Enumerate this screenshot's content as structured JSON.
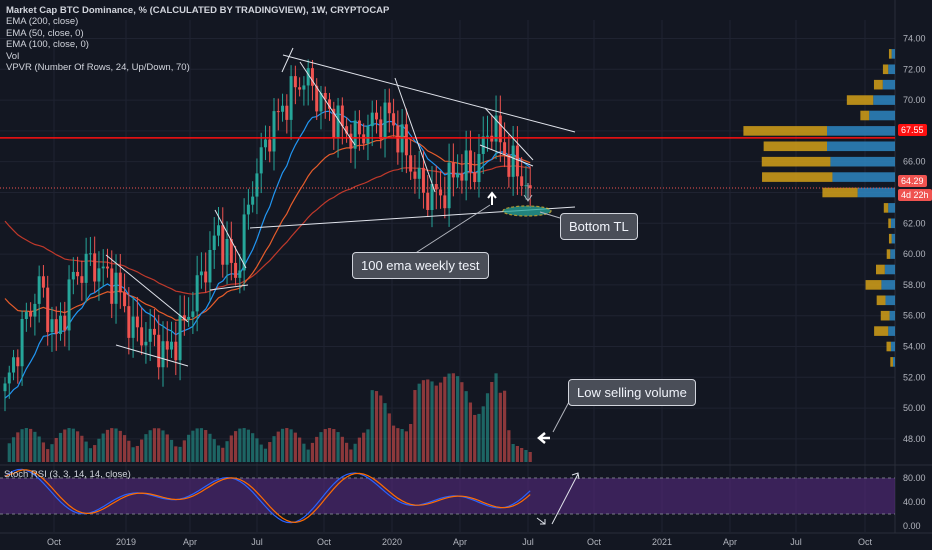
{
  "legend": {
    "title": "Market Cap BTC Dominance, % (CALCULATED BY TRADINGVIEW), 1W, CRYPTOCAP",
    "lines": [
      "EMA (200, close)",
      "EMA (50, close, 0)",
      "EMA (100, close, 0)",
      "Vol",
      "VPVR (Number Of Rows, 24, Up/Down, 70)"
    ]
  },
  "rsi_label": "Stoch RSI (3, 3, 14, 14, close)",
  "annotations": {
    "bottom_tl": "Bottom TL",
    "ema_test": "100 ema weekly test",
    "low_volume": "Low selling volume"
  },
  "price_tags": {
    "resistance": "67.55",
    "current": "64.29",
    "countdown": "4d 22h"
  },
  "colors": {
    "background": "#131722",
    "up": "#26a69a",
    "down": "#ef5350",
    "ema200": "#c0392b",
    "ema50": "#2196f3",
    "ema100": "#e65c2b",
    "resistance_line": "#ff1010",
    "rsi_band": "#5b2b86",
    "rsi_k": "#2962ff",
    "rsi_d": "#ff6d00",
    "vpvr_up": "#2e86c1",
    "vpvr_down": "#d4a017"
  },
  "chart_data": {
    "type": "candlestick",
    "y_axis_ticks": [
      "74.00",
      "72.00",
      "70.00",
      "68.00",
      "66.00",
      "64.00",
      "62.00",
      "60.00",
      "58.00",
      "56.00",
      "54.00",
      "52.00",
      "50.00",
      "48.00"
    ],
    "y_range": [
      46.5,
      75.2
    ],
    "x_axis_ticks": [
      "Oct",
      "2019",
      "Apr",
      "Jul",
      "Oct",
      "2020",
      "Apr",
      "Jul",
      "Oct",
      "2021",
      "Apr",
      "Jul",
      "Oct"
    ],
    "rsi_axis_ticks": [
      "80.00",
      "40.00",
      "0.00"
    ],
    "resistance_level": 67.55,
    "last_price": 64.29,
    "control_points": [
      {
        "i": 0,
        "v": 51
      },
      {
        "i": 4,
        "v": 55
      },
      {
        "i": 8,
        "v": 58
      },
      {
        "i": 12,
        "v": 54.5
      },
      {
        "i": 16,
        "v": 58.5
      },
      {
        "i": 20,
        "v": 59.5
      },
      {
        "i": 26,
        "v": 58
      },
      {
        "i": 30,
        "v": 55
      },
      {
        "i": 34,
        "v": 54.5
      },
      {
        "i": 38,
        "v": 53.5
      },
      {
        "i": 42,
        "v": 55.5
      },
      {
        "i": 46,
        "v": 58.5
      },
      {
        "i": 50,
        "v": 61.5
      },
      {
        "i": 54,
        "v": 58.5
      },
      {
        "i": 58,
        "v": 64.5
      },
      {
        "i": 62,
        "v": 68
      },
      {
        "i": 66,
        "v": 70
      },
      {
        "i": 70,
        "v": 71.5
      },
      {
        "i": 74,
        "v": 70
      },
      {
        "i": 78,
        "v": 68.5
      },
      {
        "i": 82,
        "v": 67.5
      },
      {
        "i": 86,
        "v": 68.5
      },
      {
        "i": 90,
        "v": 69
      },
      {
        "i": 94,
        "v": 66.5
      },
      {
        "i": 98,
        "v": 64
      },
      {
        "i": 102,
        "v": 63.8
      },
      {
        "i": 106,
        "v": 65.5
      },
      {
        "i": 110,
        "v": 65.5
      },
      {
        "i": 114,
        "v": 68.5
      },
      {
        "i": 118,
        "v": 66
      },
      {
        "i": 123,
        "v": 64.3
      }
    ],
    "vpvr_rows": [
      {
        "price": 73,
        "up": 0.05,
        "down": 0.03
      },
      {
        "price": 72,
        "up": 0.1,
        "down": 0.06
      },
      {
        "price": 71,
        "up": 0.18,
        "down": 0.1
      },
      {
        "price": 70,
        "up": 0.32,
        "down": 0.3
      },
      {
        "price": 69,
        "up": 0.38,
        "down": 0.1
      },
      {
        "price": 68,
        "up": 1.0,
        "down": 0.95
      },
      {
        "price": 67,
        "up": 1.0,
        "down": 0.72
      },
      {
        "price": 66,
        "up": 0.95,
        "down": 0.78
      },
      {
        "price": 65,
        "up": 0.92,
        "down": 0.8
      },
      {
        "price": 64,
        "up": 0.55,
        "down": 0.4
      },
      {
        "price": 63,
        "up": 0.1,
        "down": 0.05
      },
      {
        "price": 62,
        "up": 0.06,
        "down": 0.03
      },
      {
        "price": 61,
        "up": 0.05,
        "down": 0.03
      },
      {
        "price": 60,
        "up": 0.07,
        "down": 0.04
      },
      {
        "price": 59,
        "up": 0.15,
        "down": 0.1
      },
      {
        "price": 58,
        "up": 0.2,
        "down": 0.18
      },
      {
        "price": 57,
        "up": 0.14,
        "down": 0.1
      },
      {
        "price": 56,
        "up": 0.08,
        "down": 0.1
      },
      {
        "price": 55,
        "up": 0.1,
        "down": 0.16
      },
      {
        "price": 54,
        "up": 0.06,
        "down": 0.05
      },
      {
        "price": 53,
        "up": 0.03,
        "down": 0.03
      }
    ]
  }
}
